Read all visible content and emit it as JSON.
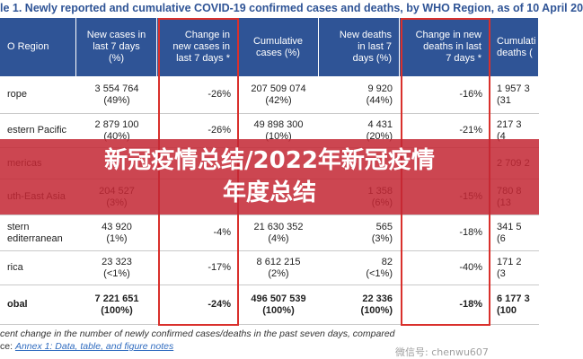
{
  "title": "le 1. Newly reported and cumulative COVID-19 confirmed cases and deaths, by WHO Region, as of 10 April 20",
  "table": {
    "header": [
      [
        "O Region"
      ],
      [
        "New cases in",
        "last 7 days",
        "(%)"
      ],
      [
        "Change in",
        "new cases in",
        "last 7 days *"
      ],
      [
        "Cumulative",
        "cases (%)"
      ],
      [
        "New deaths",
        "in last 7",
        "days (%)"
      ],
      [
        "Change in new",
        "deaths in last",
        "7 days *"
      ],
      [
        "Cumulati",
        "deaths ("
      ]
    ],
    "rows": [
      [
        [
          "rope"
        ],
        [
          "3 554 764",
          "(49%)"
        ],
        [
          "-26%"
        ],
        [
          "207 509 074",
          "(42%)"
        ],
        [
          "9 920",
          "(44%)"
        ],
        [
          "-16%"
        ],
        [
          "1 957 3",
          "(31"
        ]
      ],
      [
        [
          "estern Pacific"
        ],
        [
          "2 879 100",
          "(40%)"
        ],
        [
          "-26%"
        ],
        [
          "49 898 300",
          "(10%)"
        ],
        [
          "4 431",
          "(20%)"
        ],
        [
          "-21%"
        ],
        [
          "217 3",
          "(4"
        ]
      ],
      [
        [
          "mericas"
        ],
        null,
        null,
        null,
        null,
        null,
        [
          "2 709 2"
        ]
      ],
      [
        [
          "uth-East Asia"
        ],
        [
          "204 527",
          "(3%)"
        ],
        null,
        null,
        [
          "1 358",
          "(6%)"
        ],
        [
          "-15%"
        ],
        [
          "780 8",
          "(13"
        ]
      ],
      [
        [
          "stern",
          "editerranean"
        ],
        [
          "43 920",
          "(1%)"
        ],
        [
          "-4%"
        ],
        [
          "21 630 352",
          "(4%)"
        ],
        [
          "565",
          "(3%)"
        ],
        [
          "-18%"
        ],
        [
          "341 5",
          "(6"
        ]
      ],
      [
        [
          "rica"
        ],
        [
          "23 323",
          "(<1%)"
        ],
        [
          "-17%"
        ],
        [
          "8 612 215",
          "(2%)"
        ],
        [
          "82",
          "(<1%)"
        ],
        [
          "-40%"
        ],
        [
          "171 2",
          "(3"
        ]
      ],
      [
        [
          "obal"
        ],
        [
          "7 221 651",
          "(100%)"
        ],
        [
          "-24%"
        ],
        [
          "496 507 539",
          "(100%)"
        ],
        [
          "22 336",
          "(100%)"
        ],
        [
          "-18%"
        ],
        [
          "6 177 3",
          "(100"
        ]
      ]
    ]
  },
  "footer": {
    "note": "cent change in the number of newly confirmed cases/deaths in the past seven days, compared",
    "source_prefix": "ce:",
    "source_link": "Annex 1: Data, table, and figure notes"
  },
  "banner": {
    "lines": [
      "新冠疫情总结/2022年新冠疫情",
      "年度总结"
    ]
  },
  "watermark": "微信号: chenwu607"
}
